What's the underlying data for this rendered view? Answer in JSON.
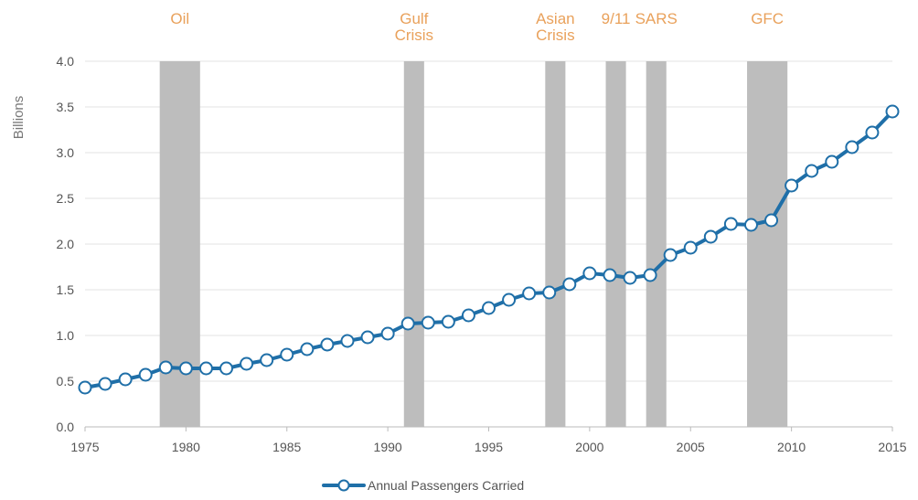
{
  "chart_data": {
    "type": "line",
    "title": "",
    "xlabel": "",
    "ylabel": "Billions",
    "xlim": [
      1975,
      2015
    ],
    "ylim": [
      0,
      4.0
    ],
    "x_ticks": [
      "1975",
      "1980",
      "1985",
      "1990",
      "1995",
      "2000",
      "2005",
      "2010",
      "2015"
    ],
    "y_ticks": [
      "0.0",
      "0.5",
      "1.0",
      "1.5",
      "2.0",
      "2.5",
      "3.0",
      "3.5",
      "4.0"
    ],
    "grid": "horizontal",
    "legend_position": "bottom-center",
    "colors": {
      "series": "#1F6FA8",
      "band": "#BDBDBD",
      "event_label": "#E9A15B",
      "axis": "#BBBBBB"
    },
    "series": [
      {
        "name": "Annual Passengers Carried",
        "x": [
          1975,
          1976,
          1977,
          1978,
          1979,
          1980,
          1981,
          1982,
          1983,
          1984,
          1985,
          1986,
          1987,
          1988,
          1989,
          1990,
          1991,
          1992,
          1993,
          1994,
          1995,
          1996,
          1997,
          1998,
          1999,
          2000,
          2001,
          2002,
          2003,
          2004,
          2005,
          2006,
          2007,
          2008,
          2009,
          2010,
          2011,
          2012,
          2013,
          2014,
          2015
        ],
        "values": [
          0.43,
          0.47,
          0.52,
          0.57,
          0.65,
          0.64,
          0.64,
          0.64,
          0.69,
          0.73,
          0.79,
          0.85,
          0.9,
          0.94,
          0.98,
          1.02,
          1.13,
          1.14,
          1.15,
          1.22,
          1.3,
          1.39,
          1.46,
          1.47,
          1.56,
          1.68,
          1.66,
          1.63,
          1.66,
          1.88,
          1.96,
          2.08,
          2.22,
          2.21,
          2.26,
          2.64,
          2.8,
          2.9,
          3.06,
          3.22,
          3.45
        ]
      }
    ],
    "events": [
      {
        "label": [
          "Oil"
        ],
        "start": 1978.7,
        "end": 1980.7
      },
      {
        "label": [
          "Gulf",
          "Crisis"
        ],
        "start": 1990.8,
        "end": 1991.8
      },
      {
        "label": [
          "Asian",
          "Crisis"
        ],
        "start": 1997.8,
        "end": 1998.8
      },
      {
        "label": [
          "9/11"
        ],
        "start": 2000.8,
        "end": 2001.8
      },
      {
        "label": [
          "SARS"
        ],
        "start": 2002.8,
        "end": 2003.8
      },
      {
        "label": [
          "GFC"
        ],
        "start": 2007.8,
        "end": 2009.8
      }
    ]
  }
}
